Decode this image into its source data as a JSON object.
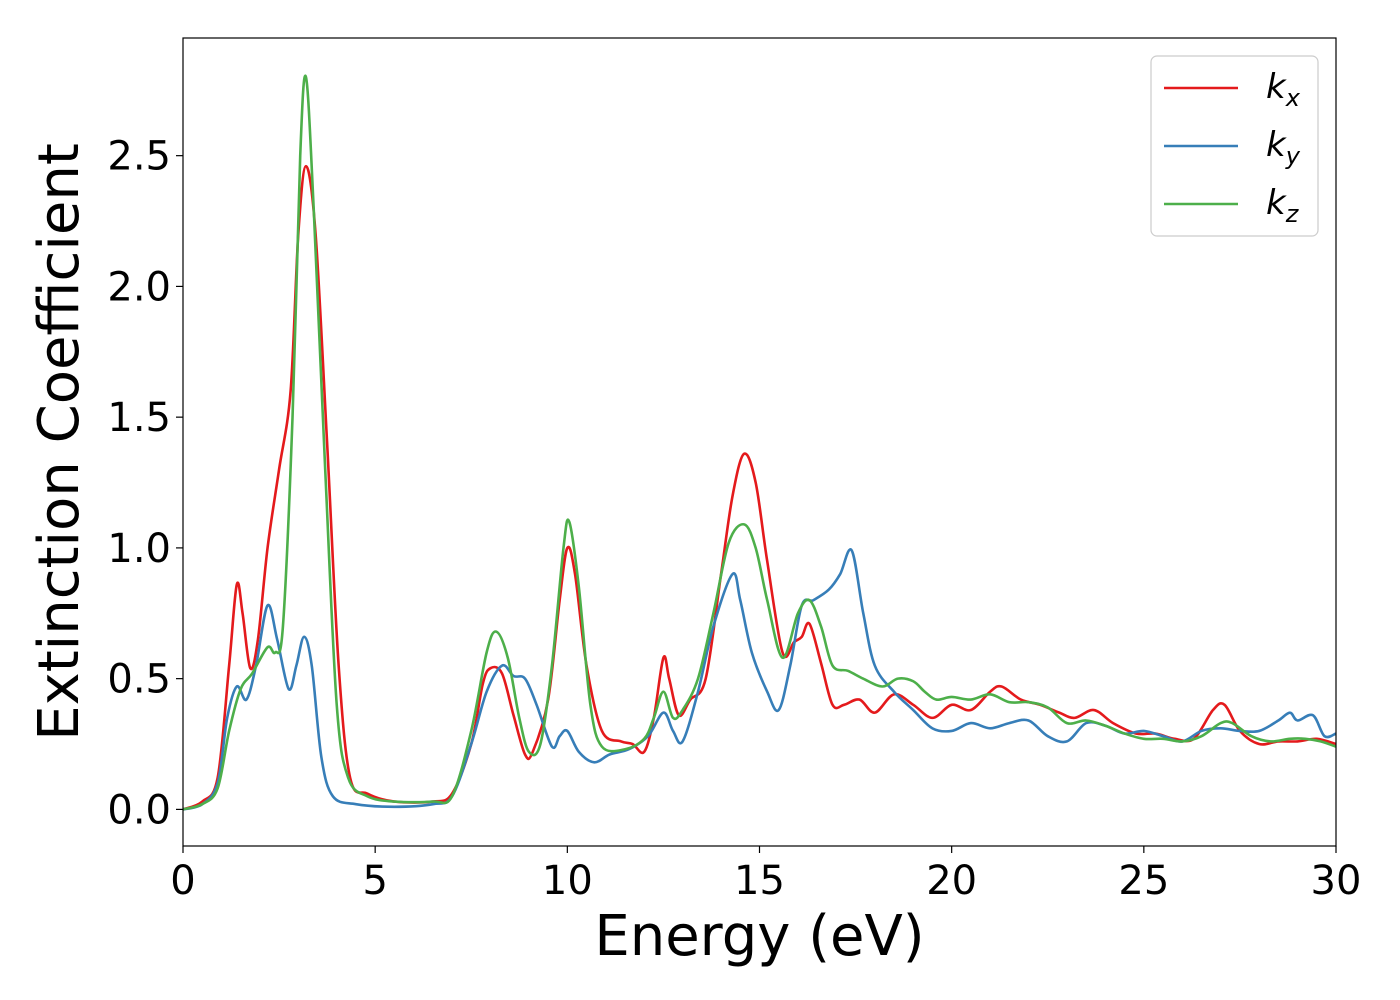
{
  "chart_data": {
    "type": "line",
    "xlabel": "Energy (eV)",
    "ylabel": "Extinction Coefficient",
    "xlim": [
      0,
      30
    ],
    "ylim": [
      -0.14,
      2.95
    ],
    "xticks": [
      0,
      5,
      10,
      15,
      20,
      25,
      30
    ],
    "yticks": [
      0.0,
      0.5,
      1.0,
      1.5,
      2.0,
      2.5
    ],
    "xtick_labels": [
      "0",
      "5",
      "10",
      "15",
      "20",
      "25",
      "30"
    ],
    "ytick_labels": [
      "0.0",
      "0.5",
      "1.0",
      "1.5",
      "2.0",
      "2.5"
    ],
    "grid": false,
    "legend_position": "top-right",
    "series": [
      {
        "name": "k",
        "subscript": "x",
        "color": "#e41a1c",
        "points": [
          [
            0,
            0.0
          ],
          [
            0.5,
            0.03
          ],
          [
            0.9,
            0.12
          ],
          [
            1.2,
            0.55
          ],
          [
            1.4,
            0.86
          ],
          [
            1.55,
            0.75
          ],
          [
            1.75,
            0.54
          ],
          [
            1.95,
            0.65
          ],
          [
            2.2,
            1.0
          ],
          [
            2.5,
            1.3
          ],
          [
            2.8,
            1.6
          ],
          [
            3.0,
            2.2
          ],
          [
            3.2,
            2.46
          ],
          [
            3.45,
            2.2
          ],
          [
            3.75,
            1.4
          ],
          [
            4.05,
            0.55
          ],
          [
            4.35,
            0.12
          ],
          [
            4.8,
            0.06
          ],
          [
            5.5,
            0.03
          ],
          [
            6.5,
            0.03
          ],
          [
            7.0,
            0.06
          ],
          [
            7.5,
            0.25
          ],
          [
            7.8,
            0.48
          ],
          [
            8.0,
            0.54
          ],
          [
            8.3,
            0.52
          ],
          [
            8.6,
            0.36
          ],
          [
            8.9,
            0.21
          ],
          [
            9.1,
            0.22
          ],
          [
            9.5,
            0.42
          ],
          [
            9.8,
            0.8
          ],
          [
            10.0,
            1.0
          ],
          [
            10.2,
            0.9
          ],
          [
            10.5,
            0.55
          ],
          [
            10.9,
            0.3
          ],
          [
            11.4,
            0.26
          ],
          [
            11.7,
            0.25
          ],
          [
            12.0,
            0.22
          ],
          [
            12.25,
            0.35
          ],
          [
            12.5,
            0.58
          ],
          [
            12.65,
            0.5
          ],
          [
            12.9,
            0.36
          ],
          [
            13.2,
            0.42
          ],
          [
            13.6,
            0.5
          ],
          [
            14.0,
            0.9
          ],
          [
            14.3,
            1.2
          ],
          [
            14.6,
            1.36
          ],
          [
            14.9,
            1.25
          ],
          [
            15.2,
            0.95
          ],
          [
            15.6,
            0.6
          ],
          [
            15.9,
            0.64
          ],
          [
            16.1,
            0.66
          ],
          [
            16.3,
            0.71
          ],
          [
            16.6,
            0.56
          ],
          [
            16.9,
            0.4
          ],
          [
            17.2,
            0.4
          ],
          [
            17.6,
            0.42
          ],
          [
            18.0,
            0.37
          ],
          [
            18.5,
            0.44
          ],
          [
            19.0,
            0.4
          ],
          [
            19.5,
            0.35
          ],
          [
            20.0,
            0.4
          ],
          [
            20.5,
            0.38
          ],
          [
            21.0,
            0.45
          ],
          [
            21.3,
            0.47
          ],
          [
            21.8,
            0.42
          ],
          [
            22.3,
            0.4
          ],
          [
            22.8,
            0.37
          ],
          [
            23.2,
            0.35
          ],
          [
            23.7,
            0.38
          ],
          [
            24.2,
            0.33
          ],
          [
            24.8,
            0.29
          ],
          [
            25.3,
            0.29
          ],
          [
            25.8,
            0.27
          ],
          [
            26.3,
            0.27
          ],
          [
            26.8,
            0.38
          ],
          [
            27.1,
            0.4
          ],
          [
            27.5,
            0.3
          ],
          [
            28.0,
            0.25
          ],
          [
            28.5,
            0.26
          ],
          [
            29.0,
            0.26
          ],
          [
            29.5,
            0.27
          ],
          [
            30.0,
            0.25
          ]
        ]
      },
      {
        "name": "k",
        "subscript": "y",
        "color": "#377eb8",
        "points": [
          [
            0,
            0.0
          ],
          [
            0.5,
            0.02
          ],
          [
            0.9,
            0.1
          ],
          [
            1.15,
            0.35
          ],
          [
            1.4,
            0.47
          ],
          [
            1.65,
            0.42
          ],
          [
            1.9,
            0.55
          ],
          [
            2.2,
            0.78
          ],
          [
            2.45,
            0.65
          ],
          [
            2.75,
            0.46
          ],
          [
            2.95,
            0.55
          ],
          [
            3.15,
            0.66
          ],
          [
            3.35,
            0.55
          ],
          [
            3.6,
            0.2
          ],
          [
            3.9,
            0.05
          ],
          [
            4.5,
            0.02
          ],
          [
            5.5,
            0.01
          ],
          [
            6.5,
            0.02
          ],
          [
            7.0,
            0.05
          ],
          [
            7.5,
            0.25
          ],
          [
            7.9,
            0.45
          ],
          [
            8.3,
            0.55
          ],
          [
            8.6,
            0.51
          ],
          [
            8.9,
            0.5
          ],
          [
            9.2,
            0.4
          ],
          [
            9.6,
            0.24
          ],
          [
            9.8,
            0.28
          ],
          [
            10.0,
            0.3
          ],
          [
            10.3,
            0.22
          ],
          [
            10.7,
            0.18
          ],
          [
            11.1,
            0.21
          ],
          [
            11.6,
            0.23
          ],
          [
            12.1,
            0.28
          ],
          [
            12.5,
            0.37
          ],
          [
            12.75,
            0.3
          ],
          [
            13.0,
            0.26
          ],
          [
            13.4,
            0.45
          ],
          [
            13.8,
            0.7
          ],
          [
            14.3,
            0.9
          ],
          [
            14.5,
            0.8
          ],
          [
            14.8,
            0.6
          ],
          [
            15.2,
            0.45
          ],
          [
            15.5,
            0.38
          ],
          [
            15.8,
            0.55
          ],
          [
            16.1,
            0.78
          ],
          [
            16.4,
            0.8
          ],
          [
            16.8,
            0.84
          ],
          [
            17.1,
            0.9
          ],
          [
            17.4,
            0.99
          ],
          [
            17.7,
            0.75
          ],
          [
            18.0,
            0.55
          ],
          [
            18.5,
            0.45
          ],
          [
            19.0,
            0.38
          ],
          [
            19.5,
            0.31
          ],
          [
            20.0,
            0.3
          ],
          [
            20.5,
            0.33
          ],
          [
            21.0,
            0.31
          ],
          [
            21.5,
            0.33
          ],
          [
            22.0,
            0.34
          ],
          [
            22.5,
            0.28
          ],
          [
            23.0,
            0.26
          ],
          [
            23.5,
            0.33
          ],
          [
            24.0,
            0.32
          ],
          [
            24.5,
            0.29
          ],
          [
            25.0,
            0.3
          ],
          [
            25.5,
            0.28
          ],
          [
            26.0,
            0.26
          ],
          [
            26.5,
            0.3
          ],
          [
            27.0,
            0.31
          ],
          [
            27.5,
            0.3
          ],
          [
            28.0,
            0.3
          ],
          [
            28.5,
            0.34
          ],
          [
            28.8,
            0.37
          ],
          [
            29.0,
            0.34
          ],
          [
            29.4,
            0.36
          ],
          [
            29.7,
            0.28
          ],
          [
            30.0,
            0.29
          ]
        ]
      },
      {
        "name": "k",
        "subscript": "z",
        "color": "#4daf4a",
        "points": [
          [
            0,
            0.0
          ],
          [
            0.5,
            0.02
          ],
          [
            0.9,
            0.08
          ],
          [
            1.2,
            0.3
          ],
          [
            1.5,
            0.46
          ],
          [
            1.8,
            0.52
          ],
          [
            2.2,
            0.62
          ],
          [
            2.4,
            0.6
          ],
          [
            2.6,
            0.7
          ],
          [
            2.85,
            1.5
          ],
          [
            3.05,
            2.5
          ],
          [
            3.2,
            2.8
          ],
          [
            3.4,
            2.3
          ],
          [
            3.7,
            1.3
          ],
          [
            4.0,
            0.4
          ],
          [
            4.3,
            0.12
          ],
          [
            4.8,
            0.05
          ],
          [
            5.5,
            0.03
          ],
          [
            6.5,
            0.03
          ],
          [
            7.0,
            0.05
          ],
          [
            7.5,
            0.3
          ],
          [
            7.9,
            0.6
          ],
          [
            8.15,
            0.68
          ],
          [
            8.45,
            0.58
          ],
          [
            8.75,
            0.35
          ],
          [
            9.0,
            0.22
          ],
          [
            9.3,
            0.25
          ],
          [
            9.6,
            0.55
          ],
          [
            9.9,
            1.0
          ],
          [
            10.05,
            1.1
          ],
          [
            10.3,
            0.85
          ],
          [
            10.6,
            0.4
          ],
          [
            10.9,
            0.24
          ],
          [
            11.5,
            0.23
          ],
          [
            12.0,
            0.27
          ],
          [
            12.25,
            0.35
          ],
          [
            12.5,
            0.45
          ],
          [
            12.75,
            0.35
          ],
          [
            13.0,
            0.38
          ],
          [
            13.4,
            0.5
          ],
          [
            13.8,
            0.75
          ],
          [
            14.2,
            1.02
          ],
          [
            14.6,
            1.09
          ],
          [
            14.9,
            1.0
          ],
          [
            15.2,
            0.8
          ],
          [
            15.6,
            0.58
          ],
          [
            16.0,
            0.75
          ],
          [
            16.3,
            0.8
          ],
          [
            16.6,
            0.7
          ],
          [
            16.9,
            0.55
          ],
          [
            17.3,
            0.53
          ],
          [
            17.7,
            0.5
          ],
          [
            18.2,
            0.47
          ],
          [
            18.6,
            0.5
          ],
          [
            19.0,
            0.49
          ],
          [
            19.3,
            0.45
          ],
          [
            19.6,
            0.42
          ],
          [
            20.0,
            0.43
          ],
          [
            20.5,
            0.42
          ],
          [
            21.0,
            0.44
          ],
          [
            21.5,
            0.41
          ],
          [
            22.0,
            0.41
          ],
          [
            22.5,
            0.39
          ],
          [
            23.0,
            0.33
          ],
          [
            23.5,
            0.34
          ],
          [
            24.0,
            0.32
          ],
          [
            24.5,
            0.29
          ],
          [
            25.0,
            0.27
          ],
          [
            25.5,
            0.27
          ],
          [
            26.0,
            0.26
          ],
          [
            26.5,
            0.28
          ],
          [
            27.0,
            0.33
          ],
          [
            27.3,
            0.33
          ],
          [
            27.8,
            0.28
          ],
          [
            28.3,
            0.26
          ],
          [
            28.8,
            0.27
          ],
          [
            29.2,
            0.27
          ],
          [
            29.6,
            0.26
          ],
          [
            30.0,
            0.24
          ]
        ]
      }
    ]
  }
}
